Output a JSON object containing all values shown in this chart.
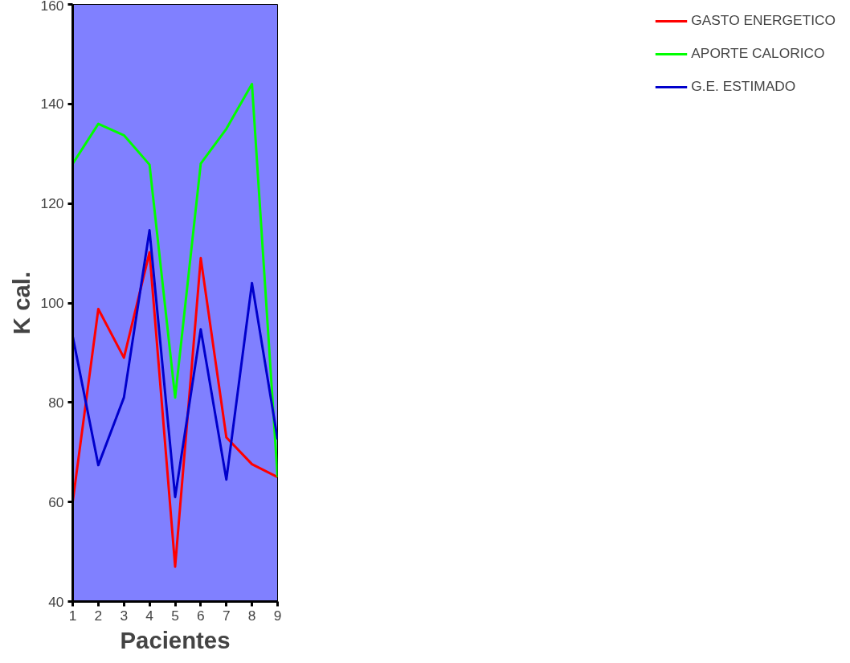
{
  "chart_data": {
    "type": "line",
    "xlabel": "Pacientes",
    "ylabel": "K cal.",
    "x": [
      1,
      2,
      3,
      4,
      5,
      6,
      7,
      8,
      9
    ],
    "xlim": [
      1,
      9
    ],
    "xticks": [
      1,
      2,
      3,
      4,
      5,
      6,
      7,
      8,
      9
    ],
    "ylim": [
      40,
      160
    ],
    "yticks": [
      40,
      60,
      80,
      100,
      120,
      140,
      160
    ],
    "grid": false,
    "legend": "right",
    "marker": "none",
    "line_style": "solid",
    "series": [
      {
        "name": "GASTO ENERGETICO",
        "color": "#ff0000",
        "values": [
          60,
          98.8,
          89,
          110.2,
          47,
          109,
          73,
          67.6,
          65
        ]
      },
      {
        "name": "APORTE CALORICO",
        "color": "#00ff00",
        "values": [
          128,
          136,
          133.7,
          127.8,
          81,
          128,
          135,
          144,
          65
        ]
      },
      {
        "name": "G.E. ESTIMADO",
        "color": "#0000cc",
        "values": [
          93.3,
          67.4,
          81,
          114.6,
          61,
          94.7,
          64.5,
          104,
          72.6
        ]
      }
    ]
  }
}
